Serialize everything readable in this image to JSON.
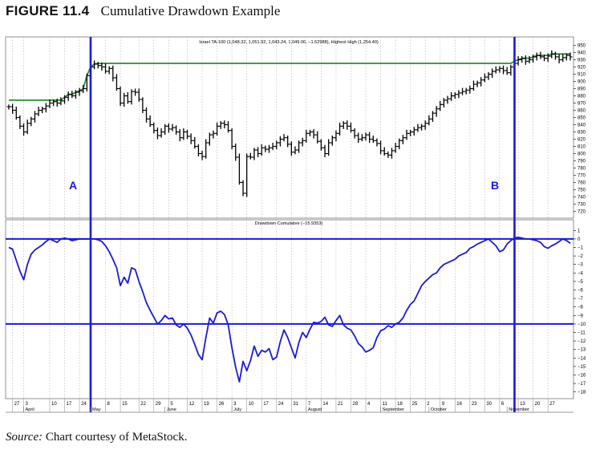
{
  "figure": {
    "label": "FIGURE 11.4",
    "caption": "Cumulative Drawdown Example",
    "source_label": "Source:",
    "source_text": "Chart courtesy of MetaStock."
  },
  "colors": {
    "price": "#000000",
    "highest_high": "#2e8b2e",
    "drawdown": "#1a1ad6",
    "markers": "#1a1ad6",
    "grid": "#b0b0b0"
  },
  "chart_data": [
    {
      "type": "ohlc",
      "title": "Israel TA-100 (1,048.32, 1,051.92, 1,043.24, 1,049.06, −1.52988), Highest High (1,254.40)",
      "ylim": [
        715,
        955
      ],
      "y_ticks": [
        720,
        730,
        740,
        750,
        760,
        770,
        780,
        790,
        800,
        810,
        820,
        830,
        840,
        850,
        860,
        870,
        880,
        890,
        900,
        910,
        920,
        930,
        940,
        950
      ],
      "annotations": [
        {
          "label": "A",
          "bar": 22
        },
        {
          "label": "B",
          "bar": 136
        }
      ],
      "series": [
        {
          "name": "Israel TA-100",
          "values": [
            865,
            860,
            850,
            838,
            830,
            842,
            848,
            855,
            860,
            862,
            866,
            870,
            872,
            870,
            873,
            878,
            882,
            880,
            885,
            887,
            890,
            908,
            920,
            924,
            922,
            920,
            914,
            918,
            905,
            890,
            870,
            880,
            872,
            886,
            885,
            875,
            860,
            848,
            840,
            832,
            825,
            830,
            838,
            834,
            836,
            830,
            822,
            830,
            824,
            818,
            810,
            800,
            796,
            815,
            826,
            828,
            838,
            842,
            840,
            832,
            810,
            795,
            760,
            745,
            796,
            795,
            805,
            800,
            808,
            806,
            808,
            810,
            815,
            820,
            822,
            813,
            802,
            805,
            815,
            818,
            828,
            830,
            826,
            817,
            808,
            800,
            815,
            822,
            828,
            838,
            842,
            838,
            832,
            825,
            820,
            822,
            826,
            820,
            818,
            814,
            804,
            800,
            798,
            804,
            810,
            818,
            822,
            828,
            830,
            833,
            836,
            838,
            842,
            848,
            856,
            862,
            868,
            874,
            876,
            880,
            882,
            884,
            886,
            888,
            890,
            896,
            898,
            902,
            906,
            910,
            914,
            916,
            918,
            915,
            912,
            920,
            925,
            930,
            932,
            928,
            930,
            934,
            936,
            934,
            932,
            935,
            938,
            934,
            930,
            933,
            936,
            934
          ]
        },
        {
          "name": "Highest High",
          "values": [
            874,
            874,
            874,
            874,
            874,
            874,
            874,
            874,
            874,
            874,
            874,
            874,
            874,
            874,
            874,
            878,
            882,
            882,
            885,
            887,
            890,
            908,
            920,
            924,
            925,
            925,
            925,
            925,
            925,
            925,
            925,
            925,
            925,
            925,
            925,
            925,
            925,
            925,
            925,
            925,
            925,
            925,
            925,
            925,
            925,
            925,
            925,
            925,
            925,
            925,
            925,
            925,
            925,
            925,
            925,
            925,
            925,
            925,
            925,
            925,
            925,
            925,
            925,
            925,
            925,
            925,
            925,
            925,
            925,
            925,
            925,
            925,
            925,
            925,
            925,
            925,
            925,
            925,
            925,
            925,
            925,
            925,
            925,
            925,
            925,
            925,
            925,
            925,
            925,
            925,
            925,
            925,
            925,
            925,
            925,
            925,
            925,
            925,
            925,
            925,
            925,
            925,
            925,
            925,
            925,
            925,
            925,
            925,
            925,
            925,
            925,
            925,
            925,
            925,
            925,
            925,
            925,
            925,
            925,
            925,
            925,
            925,
            925,
            925,
            925,
            925,
            925,
            925,
            925,
            925,
            925,
            925,
            925,
            925,
            925,
            925,
            928,
            930,
            932,
            932,
            932,
            934,
            936,
            936,
            936,
            936,
            938,
            938,
            938,
            938,
            938,
            938
          ]
        }
      ]
    },
    {
      "type": "line",
      "title": "Drawdown Cumulative (−15.9353)",
      "ylim": [
        -18.5,
        1.5
      ],
      "y_ticks": [
        1,
        0,
        -1,
        -2,
        -3,
        -4,
        -5,
        -6,
        -7,
        -8,
        -9,
        -10,
        -11,
        -12,
        -13,
        -14,
        -15,
        -16,
        -17,
        -18
      ],
      "reference_lines": [
        0,
        -10
      ],
      "series": [
        {
          "name": "Drawdown Cumulative",
          "values": [
            -1,
            -1.2,
            -2.5,
            -3.8,
            -4.8,
            -3,
            -1.8,
            -1.3,
            -1,
            -0.7,
            -0.3,
            0,
            -0.2,
            -0.4,
            0,
            0.1,
            0,
            -0.2,
            -0.1,
            0,
            0,
            0,
            0,
            0,
            -0.1,
            -0.3,
            -0.8,
            -1.5,
            -2.4,
            -3.4,
            -5.5,
            -4.5,
            -5.2,
            -3.4,
            -3.6,
            -5,
            -6.2,
            -7.5,
            -8.4,
            -9.2,
            -10,
            -9.6,
            -9,
            -9.4,
            -9.3,
            -10.1,
            -10.4,
            -10,
            -10.5,
            -11.3,
            -12.4,
            -13.6,
            -14.2,
            -11.6,
            -9.3,
            -9.9,
            -8.7,
            -8.5,
            -8.9,
            -10.1,
            -12.8,
            -15.1,
            -16.8,
            -14.4,
            -15.5,
            -14.3,
            -12.6,
            -13.8,
            -13.1,
            -13.3,
            -12.9,
            -14.2,
            -13.9,
            -12.1,
            -10.7,
            -11.6,
            -12.8,
            -14,
            -12.2,
            -11,
            -11.6,
            -10.6,
            -9.8,
            -9.9,
            -9.7,
            -9.2,
            -10.1,
            -10.3,
            -9.6,
            -9,
            -10.1,
            -10.5,
            -10.7,
            -11.4,
            -12.3,
            -12.7,
            -13.3,
            -13.1,
            -12.8,
            -11.6,
            -10.8,
            -10.6,
            -10.2,
            -10.4,
            -10,
            -9.8,
            -9.3,
            -8.4,
            -7.7,
            -7.3,
            -6.4,
            -5.5,
            -5,
            -4.6,
            -4.2,
            -4,
            -3.4,
            -3,
            -2.8,
            -2.6,
            -2.4,
            -2,
            -1.8,
            -1.6,
            -1.1,
            -0.9,
            -0.6,
            -0.4,
            -0.2,
            0,
            -0.4,
            -0.8,
            -1.5,
            -1.3,
            -0.6,
            -0.2,
            0.1,
            0.2,
            0.1,
            0,
            0,
            -0.1,
            -0.2,
            -0.4,
            -0.9,
            -1.1,
            -0.8,
            -0.6,
            -0.3,
            0,
            -0.2,
            -0.5
          ]
        }
      ]
    }
  ],
  "x_axis": {
    "ticks": [
      {
        "bar": 1,
        "label": "27"
      },
      {
        "bar": 4,
        "label": "3"
      },
      {
        "bar": 11,
        "label": "10"
      },
      {
        "bar": 15,
        "label": "17"
      },
      {
        "bar": 19,
        "label": "24"
      },
      {
        "bar": 26,
        "label": "8"
      },
      {
        "bar": 30,
        "label": "15"
      },
      {
        "bar": 35,
        "label": "22"
      },
      {
        "bar": 39,
        "label": "29"
      },
      {
        "bar": 43,
        "label": "5"
      },
      {
        "bar": 48,
        "label": "12"
      },
      {
        "bar": 52,
        "label": "19"
      },
      {
        "bar": 56,
        "label": "26"
      },
      {
        "bar": 60,
        "label": "3"
      },
      {
        "bar": 64,
        "label": "10"
      },
      {
        "bar": 68,
        "label": "17"
      },
      {
        "bar": 72,
        "label": "24"
      },
      {
        "bar": 76,
        "label": "31"
      },
      {
        "bar": 80,
        "label": "7"
      },
      {
        "bar": 84,
        "label": "14"
      },
      {
        "bar": 88,
        "label": "21"
      },
      {
        "bar": 92,
        "label": "28"
      },
      {
        "bar": 96,
        "label": "4"
      },
      {
        "bar": 100,
        "label": "11"
      },
      {
        "bar": 104,
        "label": "18"
      },
      {
        "bar": 108,
        "label": "25"
      },
      {
        "bar": 112,
        "label": "2"
      },
      {
        "bar": 116,
        "label": "9"
      },
      {
        "bar": 120,
        "label": "16"
      },
      {
        "bar": 124,
        "label": "23"
      },
      {
        "bar": 128,
        "label": "30"
      },
      {
        "bar": 132,
        "label": "6"
      },
      {
        "bar": 137,
        "label": "13"
      },
      {
        "bar": 141,
        "label": "20"
      },
      {
        "bar": 145,
        "label": "27"
      }
    ],
    "months": [
      {
        "bar": 4,
        "label": "April"
      },
      {
        "bar": 22,
        "label": "May"
      },
      {
        "bar": 42,
        "label": "June"
      },
      {
        "bar": 60,
        "label": "July"
      },
      {
        "bar": 80,
        "label": "August"
      },
      {
        "bar": 100,
        "label": "September"
      },
      {
        "bar": 113,
        "label": "October"
      },
      {
        "bar": 134,
        "label": "November"
      }
    ]
  }
}
